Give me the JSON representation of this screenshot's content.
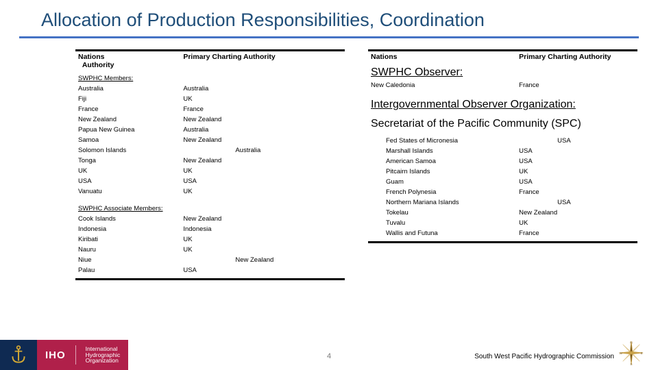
{
  "title": {
    "text": "Allocation of Production Responsibilities, Coordination",
    "color": "#1f4e79",
    "fontsize_pt": 27
  },
  "rule_color": "#4472c4",
  "header_fontsize_pt": 10,
  "cell_fontsize_pt": 9.5,
  "left_box": {
    "headers": [
      "Nations",
      "Primary Charting Authority"
    ],
    "header_col1_lines": [
      "Nations",
      "Authority"
    ],
    "sections": [
      {
        "title": "SWPHC Members:",
        "rows": [
          [
            "Australia",
            "Australia"
          ],
          [
            "Fiji",
            "UK"
          ],
          [
            "France",
            "France"
          ],
          [
            "New Zealand",
            "New Zealand"
          ],
          [
            "Papua New Guinea",
            "Australia"
          ],
          [
            "Samoa",
            "New Zealand"
          ],
          [
            "Solomon Islands",
            "Australia"
          ],
          [
            "Tonga",
            "New Zealand"
          ],
          [
            "UK",
            "UK"
          ],
          [
            "USA",
            "USA"
          ],
          [
            "Vanuatu",
            "UK"
          ]
        ],
        "offset_rows": [
          6
        ]
      },
      {
        "title": "SWPHC Associate Members:",
        "rows": [
          [
            "Cook Islands",
            "New Zealand"
          ],
          [
            "Indonesia",
            "Indonesia"
          ],
          [
            "Kiribati",
            "UK"
          ],
          [
            "Nauru",
            "UK"
          ],
          [
            "Niue",
            "New Zealand"
          ],
          [
            "Palau",
            "USA"
          ]
        ],
        "offset_rows": [
          4
        ]
      }
    ]
  },
  "right_box": {
    "headers": [
      "Nations",
      "Primary Charting Authority"
    ],
    "observer_title": "SWPHC Observer:",
    "observer_rows": [
      [
        "New Caledonia",
        "France"
      ]
    ],
    "org_title": "Intergovernmental Observer Organization:",
    "org_name": "Secretariat of the Pacific Community (SPC)",
    "org_rows": [
      [
        "Fed States of Micronesia",
        "USA"
      ],
      [
        "Marshall Islands",
        "USA"
      ],
      [
        "American Samoa",
        "USA"
      ],
      [
        "Pitcairn Islands",
        "UK"
      ],
      [
        "Guam",
        "USA"
      ],
      [
        "French Polynesia",
        "France"
      ],
      [
        "Northern Mariana Islands",
        "USA"
      ],
      [
        "Tokelau",
        "New Zealand"
      ],
      [
        "Tuvalu",
        "UK"
      ],
      [
        "Wallis and Futuna",
        "France"
      ]
    ],
    "offset_rows": [
      0,
      6
    ]
  },
  "footer": {
    "flag_bg": "#0f2a52",
    "iho_bg": "#b0204a",
    "iho_label": "IHO",
    "iho_sub_lines": [
      "International",
      "Hydrographic",
      "Organization"
    ],
    "commission": "South West Pacific Hydrographic Commission",
    "page": "4",
    "compass_colors": {
      "ring": "#c9a24a",
      "needle": "#7a5a20"
    },
    "anchor_color": "#d4a934"
  },
  "fontsizes": {
    "title": 27,
    "headers": 10.5,
    "cells": 9.5,
    "footer_small": 10,
    "iho_label": 15,
    "iho_sub": 8.5,
    "page": 11
  }
}
